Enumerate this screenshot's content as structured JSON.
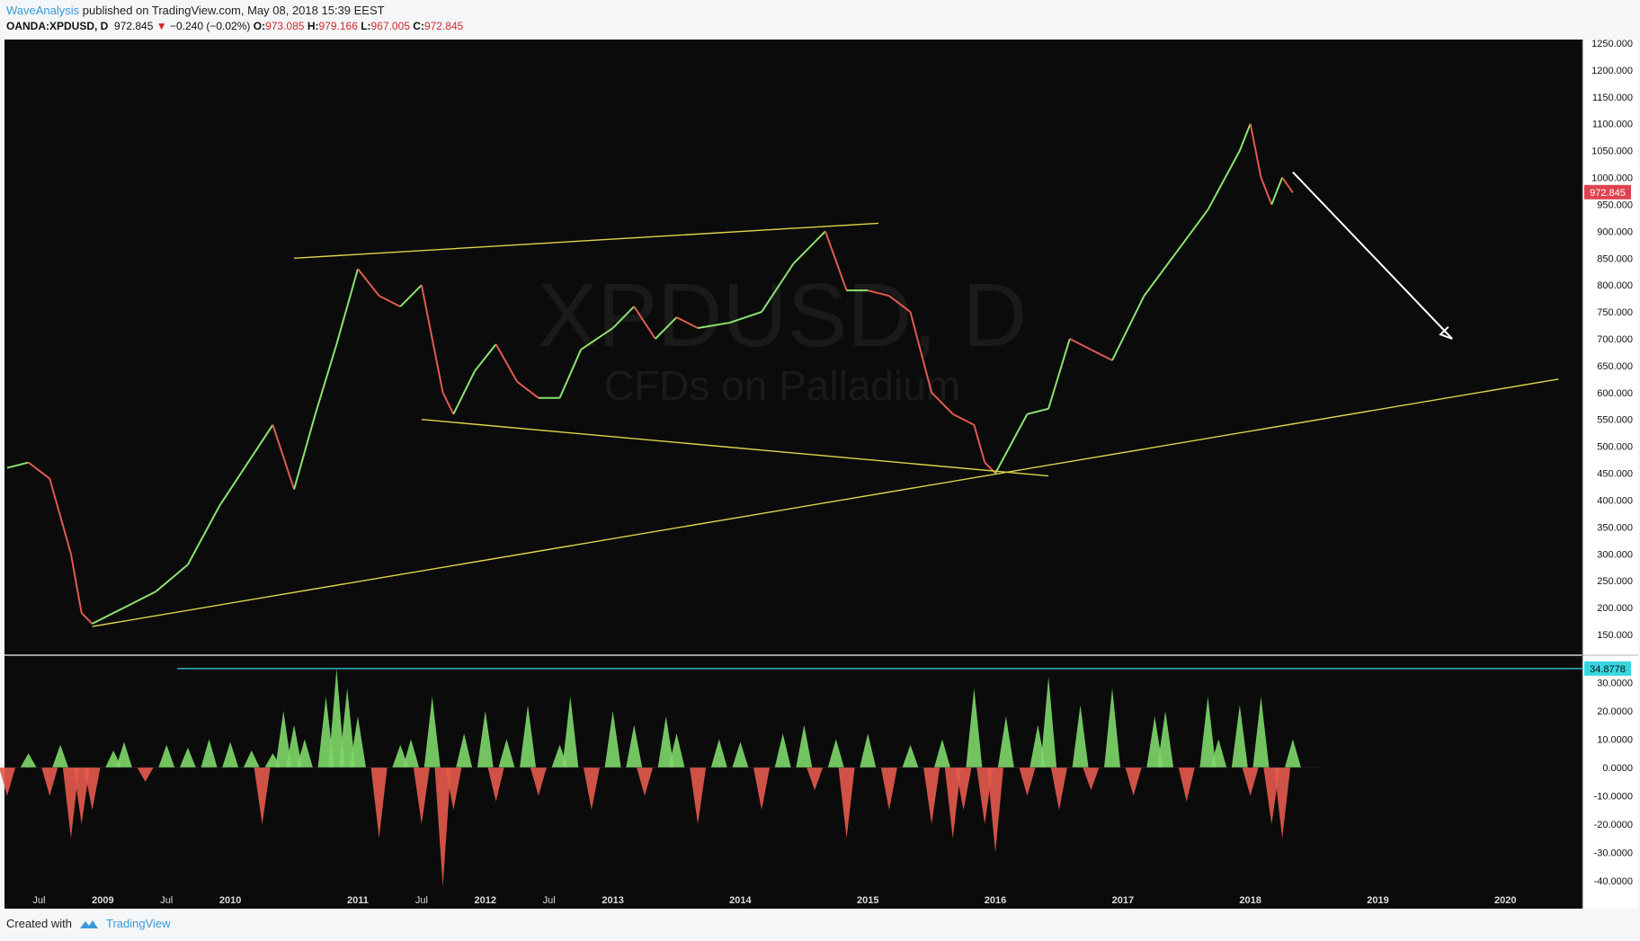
{
  "header": {
    "author": "WaveAnalysis",
    "published": "published on TradingView.com, May 08, 2018 15:39 EEST",
    "symbol": "OANDA:XPDUSD, D",
    "last": "972.845",
    "change": "−0.240 (−0.02%)",
    "o_label": "O:",
    "o": "973.085",
    "h_label": "H:",
    "h": "979.166",
    "l_label": "L:",
    "l": "967.005",
    "c_label": "C:",
    "c": "972.845"
  },
  "footer": {
    "created_with": "Created with",
    "brand": "TradingView"
  },
  "watermark": {
    "symbol": "XPDUSD, D",
    "description": "CFDs on Palladium"
  },
  "colors": {
    "background": "#0b0b0b",
    "up_candle": "#8be36f",
    "down_candle": "#e05a50",
    "trendline": "#e0d44a",
    "arrow": "#ffffff",
    "histogram_up": "#7ed86a",
    "histogram_down": "#e55a4c",
    "cyan_line": "#35d6e0",
    "price_label": "#e0434f"
  },
  "chart_data": [
    {
      "type": "line",
      "title": "OANDA:XPDUSD, D",
      "series": [
        {
          "name": "XPDUSD",
          "x": [
            "2008-04",
            "2008-06",
            "2008-08",
            "2008-10",
            "2008-11",
            "2008-12",
            "2009-03",
            "2009-06",
            "2009-09",
            "2009-12",
            "2010-03",
            "2010-05",
            "2010-07",
            "2010-09",
            "2010-11",
            "2011-01",
            "2011-03",
            "2011-05",
            "2011-07",
            "2011-09",
            "2011-10",
            "2011-12",
            "2012-02",
            "2012-04",
            "2012-06",
            "2012-08",
            "2012-10",
            "2013-01",
            "2013-03",
            "2013-05",
            "2013-07",
            "2013-09",
            "2013-12",
            "2014-03",
            "2014-06",
            "2014-08",
            "2014-09",
            "2014-11",
            "2015-01",
            "2015-03",
            "2015-05",
            "2015-07",
            "2015-09",
            "2015-11",
            "2015-12",
            "2016-01",
            "2016-04",
            "2016-06",
            "2016-08",
            "2016-10",
            "2016-12",
            "2017-03",
            "2017-06",
            "2017-09",
            "2017-12",
            "2018-01",
            "2018-02",
            "2018-03",
            "2018-04",
            "2018-05"
          ],
          "values": [
            460,
            470,
            440,
            300,
            190,
            170,
            200,
            230,
            280,
            390,
            480,
            540,
            420,
            560,
            690,
            830,
            780,
            760,
            800,
            600,
            560,
            640,
            690,
            620,
            590,
            590,
            680,
            720,
            760,
            700,
            740,
            720,
            730,
            750,
            840,
            880,
            900,
            790,
            790,
            780,
            750,
            600,
            560,
            540,
            470,
            450,
            560,
            570,
            700,
            680,
            660,
            780,
            860,
            940,
            1050,
            1100,
            1000,
            950,
            1000,
            972
          ]
        }
      ],
      "ylim": [
        150,
        1250
      ],
      "yticks": [
        "1250.000",
        "1200.000",
        "1150.000",
        "1100.000",
        "1050.000",
        "1000.000",
        "950.000",
        "900.000",
        "850.000",
        "800.000",
        "750.000",
        "700.000",
        "650.000",
        "600.000",
        "550.000",
        "500.000",
        "450.000",
        "400.000",
        "350.000",
        "300.000",
        "250.000",
        "200.000",
        "150.000"
      ],
      "current_price_label": "972.845",
      "trendlines": [
        {
          "from": [
            "2008-12",
            165
          ],
          "to": [
            "2020-06",
            625
          ]
        },
        {
          "from": [
            "2010-07",
            850
          ],
          "to": [
            "2015-02",
            915
          ]
        },
        {
          "from": [
            "2011-07",
            550
          ],
          "to": [
            "2016-06",
            445
          ]
        }
      ],
      "projection_arrow": {
        "from": [
          "2018-05",
          1010
        ],
        "to": [
          "2019-08",
          700
        ]
      }
    },
    {
      "type": "bar",
      "title": "",
      "ylim": [
        -45,
        38
      ],
      "yticks": [
        "30.0000",
        "20.0000",
        "10.0000",
        "0.0000",
        "-10.0000",
        "-20.0000",
        "-30.0000",
        "-40.0000"
      ],
      "level_line_label": "34.8778",
      "level_line_value": 34.8778,
      "series": [
        {
          "name": "oscillator",
          "x": [
            "2008-04",
            "2008-06",
            "2008-08",
            "2008-09",
            "2008-10",
            "2008-11",
            "2008-12",
            "2009-02",
            "2009-03",
            "2009-05",
            "2009-07",
            "2009-09",
            "2009-11",
            "2010-01",
            "2010-03",
            "2010-04",
            "2010-05",
            "2010-06",
            "2010-07",
            "2010-08",
            "2010-10",
            "2010-11",
            "2010-12",
            "2011-01",
            "2011-03",
            "2011-05",
            "2011-06",
            "2011-07",
            "2011-08",
            "2011-09",
            "2011-10",
            "2011-11",
            "2012-01",
            "2012-02",
            "2012-03",
            "2012-05",
            "2012-06",
            "2012-08",
            "2012-09",
            "2012-11",
            "2013-01",
            "2013-03",
            "2013-04",
            "2013-06",
            "2013-07",
            "2013-09",
            "2013-11",
            "2014-01",
            "2014-03",
            "2014-05",
            "2014-07",
            "2014-08",
            "2014-10",
            "2014-11",
            "2015-01",
            "2015-03",
            "2015-05",
            "2015-07",
            "2015-08",
            "2015-09",
            "2015-10",
            "2015-11",
            "2015-12",
            "2016-01",
            "2016-02",
            "2016-04",
            "2016-05",
            "2016-06",
            "2016-07",
            "2016-09",
            "2016-10",
            "2016-12",
            "2017-02",
            "2017-04",
            "2017-05",
            "2017-07",
            "2017-09",
            "2017-10",
            "2017-12",
            "2018-01",
            "2018-02",
            "2018-03",
            "2018-04",
            "2018-05"
          ],
          "values": [
            -10,
            5,
            -10,
            8,
            -25,
            -20,
            -15,
            6,
            9,
            -5,
            8,
            7,
            10,
            9,
            6,
            -20,
            5,
            20,
            15,
            10,
            25,
            35,
            28,
            18,
            -25,
            8,
            10,
            -20,
            25,
            -42,
            -15,
            12,
            20,
            -12,
            10,
            22,
            -10,
            8,
            25,
            -15,
            20,
            15,
            -10,
            18,
            12,
            -20,
            10,
            9,
            -15,
            12,
            15,
            -8,
            10,
            -25,
            12,
            -15,
            8,
            -20,
            10,
            -25,
            -15,
            28,
            -20,
            -30,
            18,
            -10,
            15,
            32,
            -15,
            22,
            -8,
            28,
            -10,
            18,
            20,
            -12,
            25,
            10,
            22,
            -10,
            25,
            -20,
            -25,
            10
          ]
        }
      ]
    }
  ],
  "time_axis": {
    "labels": [
      "Jul",
      "2009",
      "Jul",
      "2010",
      "2011",
      "Jul",
      "2012",
      "Jul",
      "2013",
      "2014",
      "2015",
      "2016",
      "2017",
      "2018",
      "2019",
      "2020"
    ],
    "dates": [
      "2008-07",
      "2009-01",
      "2009-07",
      "2010-01",
      "2011-01",
      "2011-07",
      "2012-01",
      "2012-07",
      "2013-01",
      "2014-01",
      "2015-01",
      "2016-01",
      "2017-01",
      "2018-01",
      "2019-01",
      "2020-01"
    ]
  }
}
